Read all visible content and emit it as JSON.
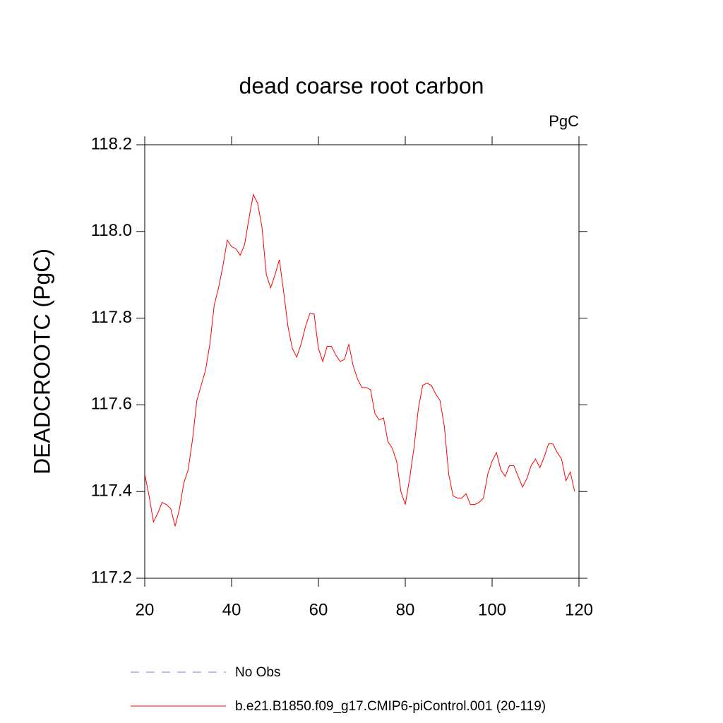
{
  "chart_data": {
    "type": "line",
    "title": "dead coarse root carbon",
    "units_label": "PgC",
    "ylabel": "DEADCROOTC  (PgC)",
    "x": [
      20,
      21,
      22,
      23,
      24,
      25,
      26,
      27,
      28,
      29,
      30,
      31,
      32,
      33,
      34,
      35,
      36,
      37,
      38,
      39,
      40,
      41,
      42,
      43,
      44,
      45,
      46,
      47,
      48,
      49,
      50,
      51,
      52,
      53,
      54,
      55,
      56,
      57,
      58,
      59,
      60,
      61,
      62,
      63,
      64,
      65,
      66,
      67,
      68,
      69,
      70,
      71,
      72,
      73,
      74,
      75,
      76,
      77,
      78,
      79,
      80,
      81,
      82,
      83,
      84,
      85,
      86,
      87,
      88,
      89,
      90,
      91,
      92,
      93,
      94,
      95,
      96,
      97,
      98,
      99,
      100,
      101,
      102,
      103,
      104,
      105,
      106,
      107,
      108,
      109,
      110,
      111,
      112,
      113,
      114,
      115,
      116,
      117,
      118,
      119
    ],
    "series": [
      {
        "name": "No Obs",
        "color": "#7b7bd6",
        "dashed": true,
        "values": [
          null,
          null,
          null,
          null,
          null,
          null,
          null,
          null,
          null,
          null,
          null,
          null,
          null,
          null,
          null,
          null,
          null,
          null,
          null,
          null,
          null,
          null,
          null,
          null,
          null,
          null,
          null,
          null,
          null,
          null,
          null,
          null,
          null,
          null,
          null,
          null,
          null,
          null,
          null,
          null,
          null,
          null,
          null,
          null,
          null,
          null,
          null,
          null,
          null,
          null,
          null,
          null,
          null,
          null,
          null,
          null,
          null,
          null,
          null,
          null,
          null,
          null,
          null,
          null,
          null,
          null,
          null,
          null,
          null,
          null,
          null,
          null,
          null,
          null,
          null,
          null,
          null,
          null,
          null,
          null,
          null,
          null,
          null,
          null,
          null,
          null,
          null,
          null,
          null,
          null,
          null,
          null,
          null,
          null,
          null,
          null,
          null,
          null,
          null,
          null
        ]
      },
      {
        "name": "b.e21.B1850.f09_g17.CMIP6-piControl.001 (20-119)",
        "color": "#ff0000",
        "dashed": false,
        "values": [
          117.44,
          117.39,
          117.33,
          117.35,
          117.375,
          117.37,
          117.36,
          117.32,
          117.36,
          117.42,
          117.45,
          117.52,
          117.61,
          117.645,
          117.68,
          117.74,
          117.83,
          117.87,
          117.92,
          117.98,
          117.965,
          117.96,
          117.945,
          117.97,
          118.03,
          118.085,
          118.065,
          118.01,
          117.9,
          117.87,
          117.9,
          117.935,
          117.86,
          117.78,
          117.73,
          117.71,
          117.74,
          117.78,
          117.81,
          117.81,
          117.73,
          117.7,
          117.735,
          117.735,
          117.715,
          117.7,
          117.705,
          117.74,
          117.69,
          117.66,
          117.64,
          117.64,
          117.635,
          117.58,
          117.565,
          117.57,
          117.515,
          117.5,
          117.47,
          117.4,
          117.37,
          117.43,
          117.5,
          117.59,
          117.645,
          117.65,
          117.645,
          117.625,
          117.61,
          117.55,
          117.44,
          117.39,
          117.385,
          117.385,
          117.395,
          117.37,
          117.37,
          117.375,
          117.385,
          117.44,
          117.47,
          117.49,
          117.45,
          117.435,
          117.46,
          117.46,
          117.435,
          117.41,
          117.43,
          117.46,
          117.475,
          117.455,
          117.48,
          117.51,
          117.51,
          117.49,
          117.475,
          117.425,
          117.445,
          117.4
        ]
      }
    ],
    "xlim": [
      20,
      120
    ],
    "xticks": [
      20,
      40,
      60,
      80,
      100,
      120
    ],
    "ylim": [
      117.2,
      118.2
    ],
    "yticks": [
      {
        "value": 117.2,
        "label": "117.2"
      },
      {
        "value": 117.4,
        "label": "117.4"
      },
      {
        "value": 117.6,
        "label": "117.6"
      },
      {
        "value": 117.8,
        "label": "117.8"
      },
      {
        "value": 118.0,
        "label": "118.0"
      },
      {
        "value": 118.2,
        "label": "118.2"
      }
    ]
  }
}
